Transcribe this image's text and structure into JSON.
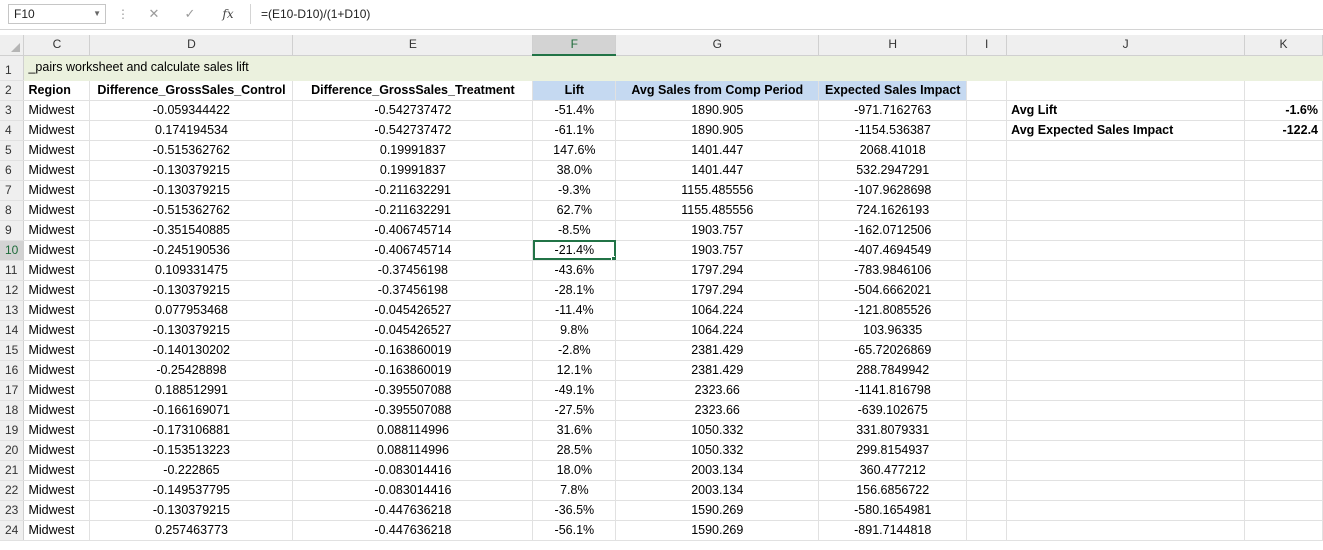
{
  "formula_bar": {
    "name_box": "F10",
    "cancel_icon": "✕",
    "enter_icon": "✓",
    "fx_label": "fx",
    "formula": "=(E10-D10)/(1+D10)"
  },
  "columns": [
    "C",
    "D",
    "E",
    "F",
    "G",
    "H",
    "I",
    "J",
    "K"
  ],
  "selected_column": "F",
  "row_numbers": [
    "1",
    "2",
    "3",
    "4",
    "5",
    "6",
    "7",
    "8",
    "9",
    "10",
    "11",
    "12",
    "13",
    "14",
    "15",
    "16",
    "17",
    "18",
    "19",
    "20",
    "21",
    "22",
    "23",
    "24"
  ],
  "selected_row": "10",
  "row1_text": "_pairs worksheet and calculate sales lift",
  "headers": {
    "region": "Region",
    "diff_control": "Difference_GrossSales_Control",
    "diff_treatment": "Difference_GrossSales_Treatment",
    "lift": "Lift",
    "avg_sales": "Avg Sales from Comp Period",
    "expected_impact": "Expected Sales Impact"
  },
  "summary": {
    "avg_lift_label": "Avg Lift",
    "avg_lift_value": "-1.6%",
    "avg_impact_label": "Avg Expected Sales Impact",
    "avg_impact_value": "-122.4"
  },
  "rows": [
    [
      "Midwest",
      "-0.059344422",
      "-0.542737472",
      "-51.4%",
      "1890.905",
      "-971.7162763"
    ],
    [
      "Midwest",
      "0.174194534",
      "-0.542737472",
      "-61.1%",
      "1890.905",
      "-1154.536387"
    ],
    [
      "Midwest",
      "-0.515362762",
      "0.19991837",
      "147.6%",
      "1401.447",
      "2068.41018"
    ],
    [
      "Midwest",
      "-0.130379215",
      "0.19991837",
      "38.0%",
      "1401.447",
      "532.2947291"
    ],
    [
      "Midwest",
      "-0.130379215",
      "-0.211632291",
      "-9.3%",
      "1155.485556",
      "-107.9628698"
    ],
    [
      "Midwest",
      "-0.515362762",
      "-0.211632291",
      "62.7%",
      "1155.485556",
      "724.1626193"
    ],
    [
      "Midwest",
      "-0.351540885",
      "-0.406745714",
      "-8.5%",
      "1903.757",
      "-162.0712506"
    ],
    [
      "Midwest",
      "-0.245190536",
      "-0.406745714",
      "-21.4%",
      "1903.757",
      "-407.4694549"
    ],
    [
      "Midwest",
      "0.109331475",
      "-0.37456198",
      "-43.6%",
      "1797.294",
      "-783.9846106"
    ],
    [
      "Midwest",
      "-0.130379215",
      "-0.37456198",
      "-28.1%",
      "1797.294",
      "-504.6662021"
    ],
    [
      "Midwest",
      "0.077953468",
      "-0.045426527",
      "-11.4%",
      "1064.224",
      "-121.8085526"
    ],
    [
      "Midwest",
      "-0.130379215",
      "-0.045426527",
      "9.8%",
      "1064.224",
      "103.96335"
    ],
    [
      "Midwest",
      "-0.140130202",
      "-0.163860019",
      "-2.8%",
      "2381.429",
      "-65.72026869"
    ],
    [
      "Midwest",
      "-0.25428898",
      "-0.163860019",
      "12.1%",
      "2381.429",
      "288.7849942"
    ],
    [
      "Midwest",
      "0.188512991",
      "-0.395507088",
      "-49.1%",
      "2323.66",
      "-1141.816798"
    ],
    [
      "Midwest",
      "-0.166169071",
      "-0.395507088",
      "-27.5%",
      "2323.66",
      "-639.102675"
    ],
    [
      "Midwest",
      "-0.173106881",
      "0.088114996",
      "31.6%",
      "1050.332",
      "331.8079331"
    ],
    [
      "Midwest",
      "-0.153513223",
      "0.088114996",
      "28.5%",
      "1050.332",
      "299.8154937"
    ],
    [
      "Midwest",
      "-0.222865",
      "-0.083014416",
      "18.0%",
      "2003.134",
      "360.477212"
    ],
    [
      "Midwest",
      "-0.149537795",
      "-0.083014416",
      "7.8%",
      "2003.134",
      "156.6856722"
    ],
    [
      "Midwest",
      "-0.130379215",
      "-0.447636218",
      "-36.5%",
      "1590.269",
      "-580.1654981"
    ],
    [
      "Midwest",
      "0.257463773",
      "-0.447636218",
      "-56.1%",
      "1590.269",
      "-891.7144818"
    ]
  ]
}
